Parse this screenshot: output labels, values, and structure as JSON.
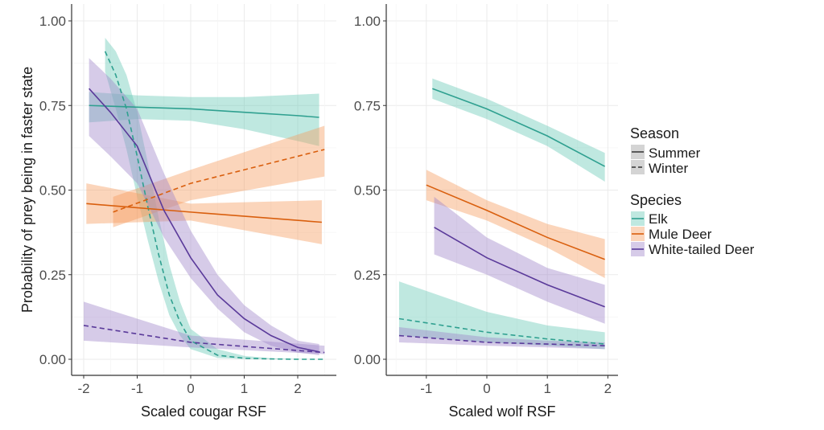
{
  "chart_data": [
    {
      "type": "line",
      "panel": "left",
      "xlabel": "Scaled cougar RSF",
      "ylabel": "Probability of prey being in faster state",
      "xlim": [
        -2.25,
        2.7
      ],
      "ylim": [
        -0.05,
        1.05
      ],
      "xticks": [
        "-2",
        "-1",
        "0",
        "1",
        "2"
      ],
      "yticks": [
        "0.00",
        "0.25",
        "0.50",
        "0.75",
        "1.00"
      ],
      "grid": true,
      "series": [
        {
          "species": "Elk",
          "season": "Summer",
          "x": [
            -1.9,
            -1,
            0,
            1,
            2,
            2.4
          ],
          "fit": [
            0.75,
            0.745,
            0.74,
            0.73,
            0.72,
            0.715
          ],
          "lo": [
            0.7,
            0.71,
            0.705,
            0.68,
            0.645,
            0.63
          ],
          "hi": [
            0.79,
            0.78,
            0.775,
            0.775,
            0.782,
            0.785
          ]
        },
        {
          "species": "Elk",
          "season": "Winter",
          "x": [
            -1.6,
            -1.4,
            -1.2,
            -1.0,
            -0.8,
            -0.6,
            -0.4,
            -0.2,
            0,
            0.5,
            1,
            1.5,
            2,
            2.5
          ],
          "fit": [
            0.91,
            0.84,
            0.74,
            0.6,
            0.45,
            0.31,
            0.19,
            0.11,
            0.055,
            0.012,
            0.003,
            0.001,
            0,
            0
          ],
          "lo": [
            0.85,
            0.74,
            0.62,
            0.48,
            0.35,
            0.23,
            0.13,
            0.07,
            0.03,
            0.004,
            0.001,
            0,
            0,
            0
          ],
          "hi": [
            0.95,
            0.91,
            0.84,
            0.73,
            0.58,
            0.42,
            0.28,
            0.17,
            0.09,
            0.03,
            0.01,
            0.003,
            0.001,
            0
          ]
        },
        {
          "species": "Mule Deer",
          "season": "Summer",
          "x": [
            -1.95,
            0,
            2.45
          ],
          "fit": [
            0.46,
            0.435,
            0.405
          ],
          "lo": [
            0.4,
            0.41,
            0.34
          ],
          "hi": [
            0.52,
            0.46,
            0.47
          ]
        },
        {
          "species": "Mule Deer",
          "season": "Winter",
          "x": [
            -1.45,
            0,
            2.5
          ],
          "fit": [
            0.435,
            0.52,
            0.62
          ],
          "lo": [
            0.39,
            0.47,
            0.54
          ],
          "hi": [
            0.48,
            0.56,
            0.69
          ]
        },
        {
          "species": "White-tailed Deer",
          "season": "Summer",
          "x": [
            -1.9,
            -1.5,
            -1,
            -0.5,
            0,
            0.5,
            1,
            1.5,
            2,
            2.4
          ],
          "fit": [
            0.8,
            0.73,
            0.63,
            0.44,
            0.3,
            0.19,
            0.12,
            0.07,
            0.035,
            0.022
          ],
          "lo": [
            0.66,
            0.6,
            0.52,
            0.36,
            0.24,
            0.15,
            0.08,
            0.04,
            0.02,
            0.012
          ],
          "hi": [
            0.89,
            0.83,
            0.74,
            0.55,
            0.38,
            0.25,
            0.16,
            0.1,
            0.055,
            0.045
          ]
        },
        {
          "species": "White-tailed Deer",
          "season": "Winter",
          "x": [
            -2,
            0,
            2.5
          ],
          "fit": [
            0.1,
            0.05,
            0.02
          ],
          "lo": [
            0.055,
            0.035,
            0.015
          ],
          "hi": [
            0.17,
            0.07,
            0.04
          ]
        }
      ]
    },
    {
      "type": "line",
      "panel": "right",
      "xlabel": "Scaled wolf RSF",
      "xlim": [
        -1.65,
        2.15
      ],
      "ylim": [
        -0.05,
        1.05
      ],
      "xticks": [
        "-1",
        "0",
        "1",
        "2"
      ],
      "yticks": [
        "0.00",
        "0.25",
        "0.50",
        "0.75",
        "1.00"
      ],
      "grid": true,
      "series": [
        {
          "species": "Elk",
          "season": "Summer",
          "x": [
            -0.9,
            0,
            1,
            1.95
          ],
          "fit": [
            0.8,
            0.74,
            0.66,
            0.57
          ],
          "lo": [
            0.77,
            0.71,
            0.63,
            0.525
          ],
          "hi": [
            0.83,
            0.77,
            0.69,
            0.61
          ]
        },
        {
          "species": "Mule Deer",
          "season": "Summer",
          "x": [
            -1,
            0,
            1,
            1.95
          ],
          "fit": [
            0.515,
            0.44,
            0.36,
            0.295
          ],
          "lo": [
            0.47,
            0.41,
            0.33,
            0.24
          ],
          "hi": [
            0.56,
            0.47,
            0.4,
            0.355
          ]
        },
        {
          "species": "White-tailed Deer",
          "season": "Summer",
          "x": [
            -0.87,
            0,
            1,
            1.95
          ],
          "fit": [
            0.39,
            0.3,
            0.22,
            0.155
          ],
          "lo": [
            0.31,
            0.25,
            0.17,
            0.105
          ],
          "hi": [
            0.48,
            0.36,
            0.27,
            0.22
          ]
        },
        {
          "species": "Elk",
          "season": "Winter",
          "x": [
            -1.45,
            0,
            1,
            1.95
          ],
          "fit": [
            0.12,
            0.08,
            0.06,
            0.045
          ],
          "lo": [
            0.07,
            0.05,
            0.04,
            0.03
          ],
          "hi": [
            0.23,
            0.14,
            0.1,
            0.08
          ]
        },
        {
          "species": "White-tailed Deer",
          "season": "Winter",
          "x": [
            -1.45,
            0,
            1,
            1.95
          ],
          "fit": [
            0.07,
            0.05,
            0.045,
            0.04
          ],
          "lo": [
            0.05,
            0.04,
            0.035,
            0.03
          ],
          "hi": [
            0.095,
            0.065,
            0.055,
            0.05
          ]
        }
      ]
    }
  ],
  "legend": {
    "season_title": "Season",
    "season_items": [
      "Summer",
      "Winter"
    ],
    "species_title": "Species",
    "species_items": [
      "Elk",
      "Mule Deer",
      "White-tailed Deer"
    ],
    "placement": "right"
  },
  "colors": {
    "Elk": {
      "line": "#2fa090",
      "fill": "#66c9b4"
    },
    "Mule Deer": {
      "line": "#d95f0e",
      "fill": "#f59c5c"
    },
    "White-tailed Deer": {
      "line": "#5a3a9a",
      "fill": "#9d84c9"
    }
  }
}
